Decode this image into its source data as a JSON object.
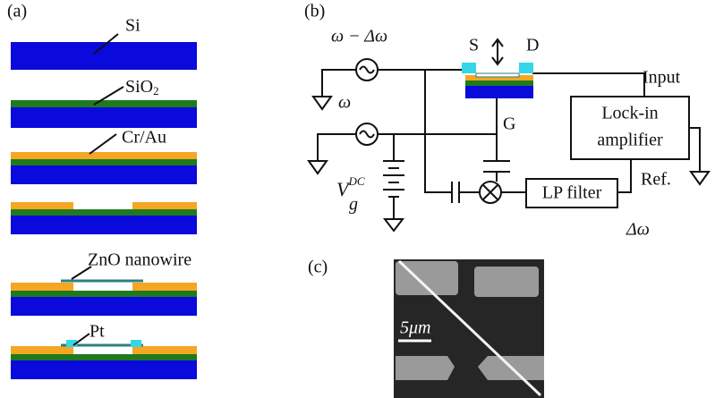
{
  "panel_a": {
    "label": "(a)",
    "steps": [
      {
        "text": "Si"
      },
      {
        "text": "SiO",
        "sub": "2"
      },
      {
        "text": "Cr/Au"
      },
      {
        "text": "ZnO nanowire"
      },
      {
        "text": "Pt"
      }
    ]
  },
  "panel_b": {
    "label": "(b)",
    "source_1": "ω − Δω",
    "source_2": "ω",
    "source": "S",
    "drain": "D",
    "gate": "G",
    "input": "Input",
    "lockin": [
      "Lock-in",
      "amplifier"
    ],
    "vdc": {
      "base": "V",
      "sub": "g",
      "sup": "DC"
    },
    "filter": "LP filter",
    "ref": "Ref.",
    "output": "Δω"
  },
  "panel_c": {
    "label": "(c)",
    "scale": "5μm"
  }
}
